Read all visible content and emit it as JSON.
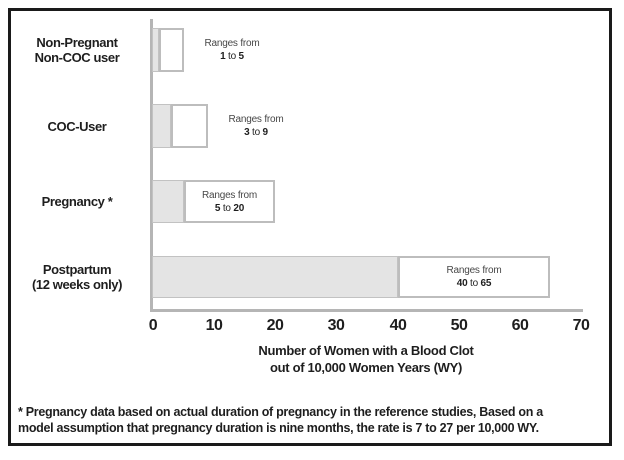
{
  "chart_data": {
    "type": "bar",
    "subtype": "range-bar",
    "orientation": "horizontal",
    "title": "",
    "categories": [
      "Non-Pregnant Non-COC user",
      "COC-User",
      "Pregnancy *",
      "Postpartum (12 weeks only)"
    ],
    "series": [
      {
        "name": "range low",
        "values": [
          1,
          3,
          5,
          40
        ]
      },
      {
        "name": "range high",
        "values": [
          5,
          9,
          20,
          65
        ]
      }
    ],
    "xlabel": "Number of Women with a Blood Clot out of 10,000 Women Years (WY)",
    "xlabel_lines": [
      "Number of Women with a Blood Clot",
      "out of 10,000 Women Years (WY)"
    ],
    "xlim": [
      0,
      70
    ],
    "x_ticks": [
      0,
      10,
      20,
      30,
      40,
      50,
      60,
      70
    ],
    "grid": false,
    "legend": false,
    "range_label_prefix": "Ranges from",
    "range_separator": "to",
    "rows": [
      {
        "category_lines": [
          "Non-Pregnant",
          "Non-COC user"
        ],
        "low": 1,
        "high": 5,
        "annotation": "Ranges from 1 to 5",
        "annotation_position": "outside-right"
      },
      {
        "category_lines": [
          "COC-User"
        ],
        "low": 3,
        "high": 9,
        "annotation": "Ranges from 3 to 9",
        "annotation_position": "outside-right"
      },
      {
        "category_lines": [
          "Pregnancy *"
        ],
        "low": 5,
        "high": 20,
        "annotation": "Ranges from 5 to 20",
        "annotation_position": "inside"
      },
      {
        "category_lines": [
          "Postpartum",
          "(12 weeks only)"
        ],
        "low": 40,
        "high": 65,
        "annotation": "Ranges from 40 to 65",
        "annotation_position": "inside"
      }
    ],
    "footnote_lines": [
      "* Pregnancy data based on actual duration of pregnancy in the reference studies, Based on a",
      "model assumption that pregnancy duration is nine months, the rate is 7 to 27 per 10,000 WY."
    ],
    "colors": {
      "bar_fill": "#e4e4e4",
      "bar_border": "#c2c2c2",
      "range_box_fill": "#ffffff",
      "range_box_border": "#bdbdbd",
      "axis_line": "#b5b5b5",
      "frame_border": "#1a1a1a",
      "text": "#1e1e1e",
      "annotation_text": "#474747",
      "background": "#ffffff"
    }
  }
}
